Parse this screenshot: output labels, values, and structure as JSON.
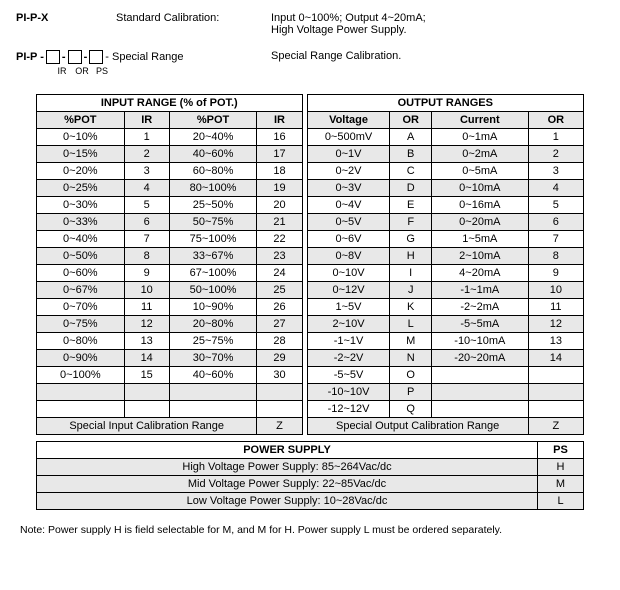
{
  "top": {
    "pipx": {
      "key": "PI-P-X",
      "label": "Standard Calibration:",
      "desc1": "Input 0~100%; Output 4~20mA;",
      "desc2": "High Voltage Power Supply."
    },
    "pipp": {
      "prefix": "PI-P - ",
      "sub_ir": "IR",
      "sub_or": "OR",
      "sub_ps": "PS",
      "suffix": " - Special Range",
      "right": "Special Range Calibration."
    }
  },
  "input_range": {
    "title": "INPUT RANGE (% of POT.)",
    "col_pot": "%POT",
    "col_ir": "IR",
    "left_rows": [
      {
        "pot": "0~10%",
        "ir": "1"
      },
      {
        "pot": "0~15%",
        "ir": "2"
      },
      {
        "pot": "0~20%",
        "ir": "3"
      },
      {
        "pot": "0~25%",
        "ir": "4"
      },
      {
        "pot": "0~30%",
        "ir": "5"
      },
      {
        "pot": "0~33%",
        "ir": "6"
      },
      {
        "pot": "0~40%",
        "ir": "7"
      },
      {
        "pot": "0~50%",
        "ir": "8"
      },
      {
        "pot": "0~60%",
        "ir": "9"
      },
      {
        "pot": "0~67%",
        "ir": "10"
      },
      {
        "pot": "0~70%",
        "ir": "11"
      },
      {
        "pot": "0~75%",
        "ir": "12"
      },
      {
        "pot": "0~80%",
        "ir": "13"
      },
      {
        "pot": "0~90%",
        "ir": "14"
      },
      {
        "pot": "0~100%",
        "ir": "15"
      },
      {
        "pot": "",
        "ir": ""
      },
      {
        "pot": "",
        "ir": ""
      }
    ],
    "right_rows": [
      {
        "pot": "20~40%",
        "ir": "16"
      },
      {
        "pot": "40~60%",
        "ir": "17"
      },
      {
        "pot": "60~80%",
        "ir": "18"
      },
      {
        "pot": "80~100%",
        "ir": "19"
      },
      {
        "pot": "25~50%",
        "ir": "20"
      },
      {
        "pot": "50~75%",
        "ir": "21"
      },
      {
        "pot": "75~100%",
        "ir": "22"
      },
      {
        "pot": "33~67%",
        "ir": "23"
      },
      {
        "pot": "67~100%",
        "ir": "24"
      },
      {
        "pot": "50~100%",
        "ir": "25"
      },
      {
        "pot": "10~90%",
        "ir": "26"
      },
      {
        "pot": "20~80%",
        "ir": "27"
      },
      {
        "pot": "25~75%",
        "ir": "28"
      },
      {
        "pot": "30~70%",
        "ir": "29"
      },
      {
        "pot": "40~60%",
        "ir": "30"
      },
      {
        "pot": "",
        "ir": ""
      },
      {
        "pot": "",
        "ir": ""
      }
    ],
    "special": "Special Input Calibration Range",
    "special_code": "Z"
  },
  "output_range": {
    "title": "OUTPUT RANGES",
    "col_voltage": "Voltage",
    "col_or": "OR",
    "col_current": "Current",
    "rows": [
      {
        "v": "0~500mV",
        "vor": "A",
        "c": "0~1mA",
        "cor": "1"
      },
      {
        "v": "0~1V",
        "vor": "B",
        "c": "0~2mA",
        "cor": "2"
      },
      {
        "v": "0~2V",
        "vor": "C",
        "c": "0~5mA",
        "cor": "3"
      },
      {
        "v": "0~3V",
        "vor": "D",
        "c": "0~10mA",
        "cor": "4"
      },
      {
        "v": "0~4V",
        "vor": "E",
        "c": "0~16mA",
        "cor": "5"
      },
      {
        "v": "0~5V",
        "vor": "F",
        "c": "0~20mA",
        "cor": "6"
      },
      {
        "v": "0~6V",
        "vor": "G",
        "c": "1~5mA",
        "cor": "7"
      },
      {
        "v": "0~8V",
        "vor": "H",
        "c": "2~10mA",
        "cor": "8"
      },
      {
        "v": "0~10V",
        "vor": "I",
        "c": "4~20mA",
        "cor": "9"
      },
      {
        "v": "0~12V",
        "vor": "J",
        "c": "-1~1mA",
        "cor": "10"
      },
      {
        "v": "1~5V",
        "vor": "K",
        "c": "-2~2mA",
        "cor": "11"
      },
      {
        "v": "2~10V",
        "vor": "L",
        "c": "-5~5mA",
        "cor": "12"
      },
      {
        "v": "-1~1V",
        "vor": "M",
        "c": "-10~10mA",
        "cor": "13"
      },
      {
        "v": "-2~2V",
        "vor": "N",
        "c": "-20~20mA",
        "cor": "14"
      },
      {
        "v": "-5~5V",
        "vor": "O",
        "c": "",
        "cor": ""
      },
      {
        "v": "-10~10V",
        "vor": "P",
        "c": "",
        "cor": ""
      },
      {
        "v": "-12~12V",
        "vor": "Q",
        "c": "",
        "cor": ""
      }
    ],
    "special": "Special Output Calibration Range",
    "special_code": "Z"
  },
  "power_supply": {
    "title": "POWER SUPPLY",
    "ps_col": "PS",
    "rows": [
      {
        "label": "High Voltage Power Supply: 85~264Vac/dc",
        "code": "H"
      },
      {
        "label": "Mid Voltage Power Supply: 22~85Vac/dc",
        "code": "M"
      },
      {
        "label": "Low Voltage Power Supply: 10~28Vac/dc",
        "code": "L"
      }
    ]
  },
  "note": "Note:  Power supply H is field selectable for M, and M for H. Power supply L must be ordered separately.",
  "colors": {
    "alt_row_bg": "#e8e8e8",
    "text": "#000000",
    "background": "#ffffff",
    "border": "#000000"
  }
}
